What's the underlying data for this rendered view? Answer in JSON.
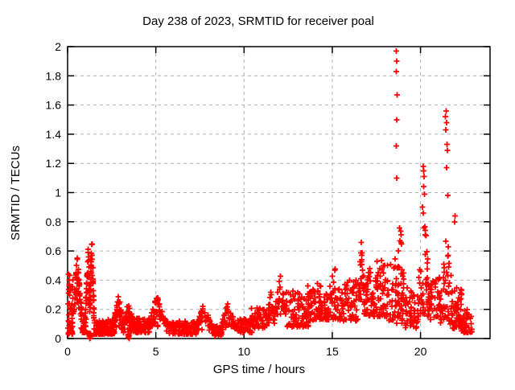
{
  "title": "Day 238 of 2023, SRMTID for receiver poal",
  "chart_data": {
    "type": "scatter",
    "title": "Day 238 of 2023, SRMTID for receiver poal",
    "xlabel": "GPS time / hours",
    "ylabel": "SRMTID / TECUs",
    "xlim": [
      0,
      23.94
    ],
    "ylim": [
      0,
      2
    ],
    "xticks": [
      0,
      5,
      10,
      15,
      20
    ],
    "xtick_labels": [
      "0",
      "5",
      "10",
      "15",
      "20"
    ],
    "yticks": [
      0,
      0.2,
      0.4,
      0.6,
      0.8,
      1,
      1.2,
      1.4,
      1.6,
      1.8,
      2
    ],
    "ytick_labels": [
      "0",
      "0.2",
      "0.4",
      "0.6",
      "0.8",
      "1",
      "1.2",
      "1.4",
      "1.6",
      "1.8",
      "2"
    ],
    "grid": true,
    "legend_position": "none",
    "series_name": "SRMTID",
    "marker": "plus",
    "marker_color": "#ff0000",
    "marker_size": 7,
    "seed": 238,
    "cluster_fields": [
      "x_start",
      "x_end",
      "count",
      "y_min",
      "y_max",
      "spread_skew",
      "peak_pos"
    ],
    "clusters": [
      [
        0.0,
        0.3,
        45,
        0.03,
        0.45,
        2.2,
        -1
      ],
      [
        0.3,
        0.8,
        55,
        0.1,
        0.57,
        0.35,
        0.5
      ],
      [
        0.75,
        1.05,
        30,
        0.04,
        0.16,
        1.6,
        -1
      ],
      [
        1.0,
        1.28,
        40,
        0.1,
        0.66,
        0.35,
        0.6
      ],
      [
        1.26,
        1.5,
        40,
        0.1,
        0.72,
        0.35,
        0.45
      ],
      [
        1.1,
        1.32,
        14,
        0.0,
        0.035,
        1.0,
        -1
      ],
      [
        1.5,
        2.65,
        130,
        0.03,
        0.13,
        1.6,
        -1
      ],
      [
        2.6,
        3.15,
        55,
        0.06,
        0.31,
        0.6,
        0.5
      ],
      [
        3.1,
        3.9,
        70,
        0.04,
        0.24,
        0.9,
        0.4
      ],
      [
        3.35,
        3.55,
        6,
        0.0,
        0.03,
        1.0,
        -1
      ],
      [
        3.9,
        4.65,
        55,
        0.04,
        0.14,
        1.4,
        -1
      ],
      [
        4.6,
        5.6,
        65,
        0.05,
        0.3,
        0.5,
        0.45
      ],
      [
        5.6,
        7.35,
        115,
        0.03,
        0.12,
        1.5,
        -1
      ],
      [
        7.3,
        8.25,
        55,
        0.04,
        0.23,
        0.5,
        0.4
      ],
      [
        8.2,
        8.75,
        35,
        0.02,
        0.09,
        1.3,
        -1
      ],
      [
        8.7,
        9.6,
        55,
        0.04,
        0.25,
        0.5,
        0.4
      ],
      [
        9.55,
        10.45,
        55,
        0.04,
        0.14,
        1.3,
        -1
      ],
      [
        10.4,
        11.35,
        55,
        0.07,
        0.21,
        1.2,
        -1
      ],
      [
        11.3,
        11.75,
        28,
        0.1,
        0.33,
        0.6,
        0.5
      ],
      [
        11.75,
        12.35,
        38,
        0.12,
        0.46,
        0.6,
        0.5
      ],
      [
        12.35,
        13.65,
        85,
        0.08,
        0.33,
        1.5,
        -1
      ],
      [
        13.6,
        14.35,
        55,
        0.12,
        0.38,
        1.3,
        -1
      ],
      [
        14.3,
        15.35,
        70,
        0.13,
        0.49,
        1.5,
        0.85
      ],
      [
        15.3,
        16.45,
        70,
        0.12,
        0.4,
        1.4,
        -1
      ],
      [
        16.45,
        16.85,
        30,
        0.2,
        0.72,
        0.8,
        0.5
      ],
      [
        16.8,
        17.4,
        45,
        0.15,
        0.6,
        1.5,
        0.4
      ],
      [
        17.35,
        18.15,
        55,
        0.15,
        0.55,
        1.6,
        -1
      ],
      [
        18.1,
        18.6,
        26,
        0.12,
        0.58,
        1.3,
        -1
      ],
      [
        18.55,
        19.15,
        55,
        0.1,
        0.9,
        1.1,
        0.5
      ],
      [
        19.1,
        19.85,
        48,
        0.07,
        0.35,
        1.4,
        -1
      ],
      [
        19.85,
        20.5,
        55,
        0.15,
        0.95,
        1.5,
        0.55
      ],
      [
        20.45,
        21.15,
        42,
        0.13,
        0.42,
        1.4,
        -1
      ],
      [
        21.1,
        21.85,
        55,
        0.1,
        0.8,
        1.5,
        0.55
      ],
      [
        21.8,
        22.35,
        48,
        0.07,
        0.35,
        1.4,
        -1
      ],
      [
        22.3,
        22.95,
        45,
        0.04,
        0.2,
        1.3,
        -1
      ]
    ],
    "outlier_points": [
      [
        0.05,
        0.44
      ],
      [
        0.08,
        0.4
      ],
      [
        0.1,
        0.36
      ],
      [
        0.04,
        0.31
      ],
      [
        18.62,
        1.97
      ],
      [
        18.66,
        1.9
      ],
      [
        18.63,
        1.83
      ],
      [
        18.67,
        1.67
      ],
      [
        18.64,
        1.5
      ],
      [
        18.62,
        1.32
      ],
      [
        18.65,
        1.1
      ],
      [
        20.15,
        1.18
      ],
      [
        20.18,
        1.15
      ],
      [
        20.2,
        1.11
      ],
      [
        20.17,
        1.04
      ],
      [
        20.22,
        0.99
      ],
      [
        20.12,
        0.9
      ],
      [
        20.16,
        0.86
      ],
      [
        21.45,
        1.56
      ],
      [
        21.42,
        1.52
      ],
      [
        21.47,
        1.48
      ],
      [
        21.44,
        1.43
      ],
      [
        21.5,
        1.33
      ],
      [
        21.52,
        1.29
      ],
      [
        21.47,
        1.17
      ],
      [
        21.55,
        0.98
      ],
      [
        21.95,
        0.84
      ],
      [
        21.93,
        0.8
      ]
    ]
  },
  "style": {
    "background": "#ffffff",
    "axis_color": "#000000",
    "grid_color": "#b0b0b0",
    "text_color": "#000000",
    "marker_color": "#ff0000"
  }
}
